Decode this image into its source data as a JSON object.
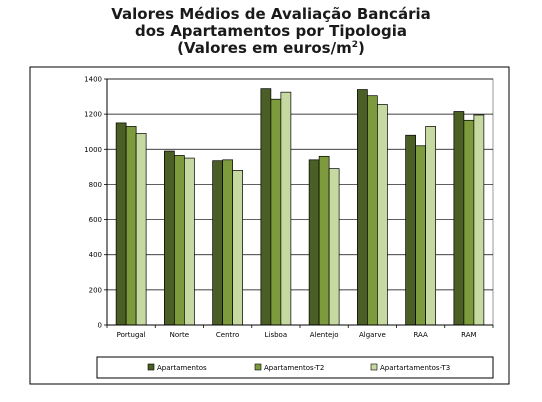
{
  "chart_data": {
    "type": "bar",
    "title_lines": [
      "Valores Médios de Avaliação Bancária",
      "dos Apartamentos por Tipologia",
      "(Valores em euros/m",
      "2",
      ")"
    ],
    "categories": [
      "Portugal",
      "Norte",
      "Centro",
      "Lisboa",
      "Alentejo",
      "Algarve",
      "RAA",
      "RAM"
    ],
    "series": [
      {
        "name": "Apartamentos",
        "color": "#4a5e26",
        "values": [
          1150,
          990,
          935,
          1345,
          940,
          1340,
          1080,
          1215
        ]
      },
      {
        "name": "Apartamentos-T2",
        "color": "#7d9a3c",
        "values": [
          1130,
          965,
          940,
          1285,
          960,
          1305,
          1020,
          1165
        ]
      },
      {
        "name": "Apartartamentos-T3",
        "color": "#c5d9a0",
        "values": [
          1090,
          950,
          880,
          1325,
          890,
          1255,
          1130,
          1195
        ]
      }
    ],
    "ylim": [
      0,
      1400
    ],
    "yticks": [
      0,
      200,
      400,
      600,
      800,
      1000,
      1200,
      1400
    ],
    "grid": true,
    "legend_position": "bottom"
  }
}
